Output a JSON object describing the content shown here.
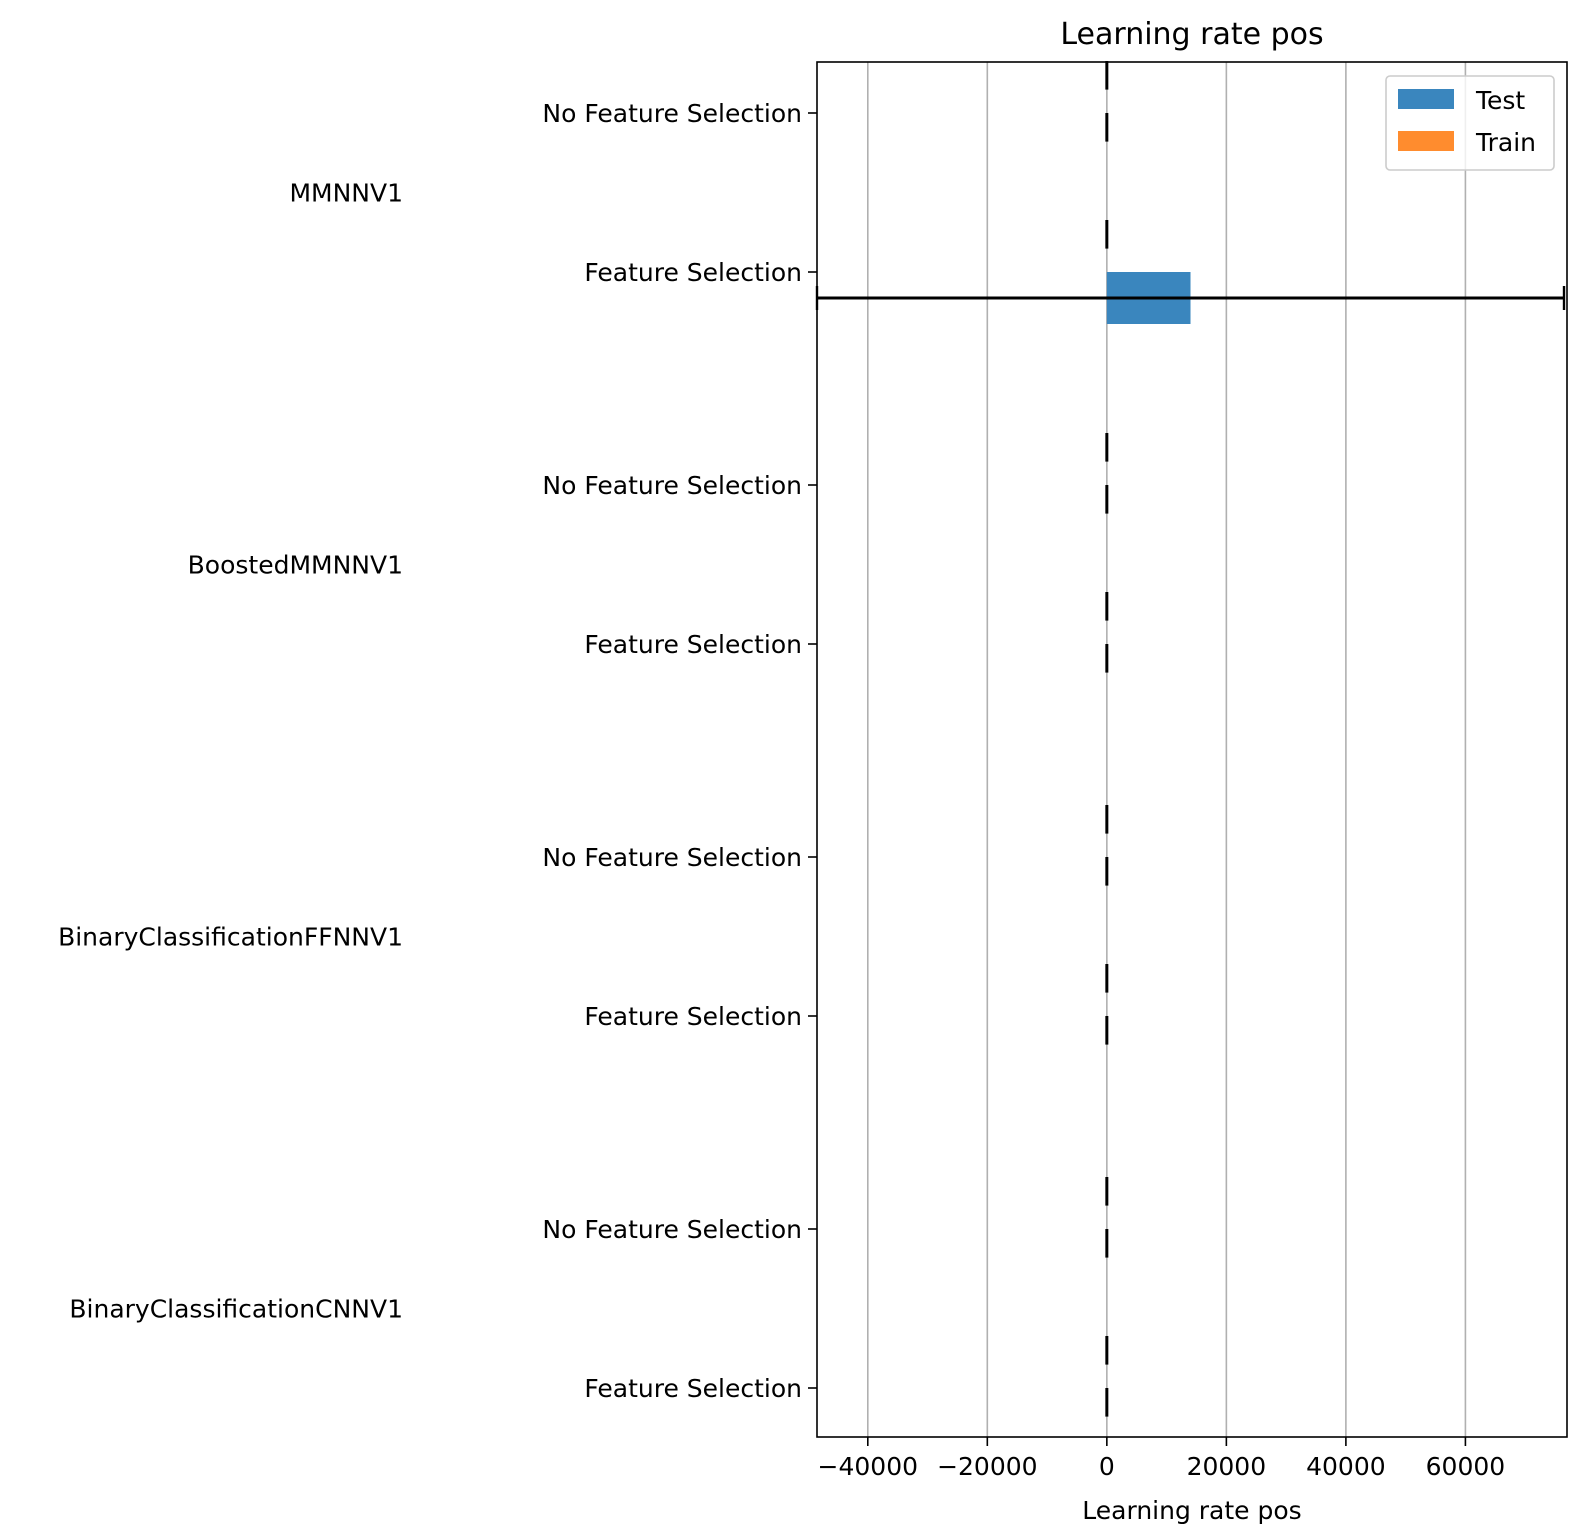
{
  "chart_data": {
    "type": "bar",
    "orientation": "horizontal",
    "title": "Learning rate pos",
    "xlabel": "Learning rate pos",
    "ylabel": "",
    "xlim": [
      -48500,
      77000
    ],
    "xticks": [
      -40000,
      -20000,
      0,
      20000,
      40000,
      60000
    ],
    "xtick_labels": [
      "−40000",
      "−20000",
      "0",
      "20000",
      "40000",
      "60000"
    ],
    "grid": "x",
    "legend": {
      "position": "top-right",
      "entries": [
        "Test",
        "Train"
      ]
    },
    "colors": {
      "Test": "#3a86be",
      "Train": "#ff8c2e"
    },
    "groups": [
      {
        "name": "MMNNV1",
        "categories": [
          {
            "label": "No Feature Selection",
            "test": 0,
            "test_err": 0,
            "train": 0,
            "train_err": 0
          },
          {
            "label": "Feature Selection",
            "test": 14000,
            "test_err": 62500,
            "train": 0,
            "train_err": 0
          }
        ]
      },
      {
        "name": "BoostedMMNNV1",
        "categories": [
          {
            "label": "No Feature Selection",
            "test": 0,
            "test_err": 0,
            "train": 0,
            "train_err": 0
          },
          {
            "label": "Feature Selection",
            "test": 0,
            "test_err": 0,
            "train": 0,
            "train_err": 0
          }
        ]
      },
      {
        "name": "BinaryClassificationFFNNV1",
        "categories": [
          {
            "label": "No Feature Selection",
            "test": 0,
            "test_err": 0,
            "train": 0,
            "train_err": 0
          },
          {
            "label": "Feature Selection",
            "test": 0,
            "test_err": 0,
            "train": 0,
            "train_err": 0
          }
        ]
      },
      {
        "name": "BinaryClassificationCNNV1",
        "categories": [
          {
            "label": "No Feature Selection",
            "test": 0,
            "test_err": 0,
            "train": 0,
            "train_err": 0
          },
          {
            "label": "Feature Selection",
            "test": 0,
            "test_err": 0,
            "train": 0,
            "train_err": 0
          }
        ]
      }
    ]
  }
}
